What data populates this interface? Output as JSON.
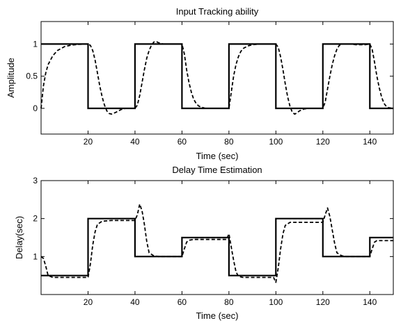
{
  "chart_data": [
    {
      "type": "line",
      "title": "Input Tracking ability",
      "xlabel": "Time (sec)",
      "ylabel": "Amplitude",
      "xlim": [
        0,
        150
      ],
      "ylim": [
        -0.4,
        1.35
      ],
      "xticks": [
        20,
        40,
        60,
        80,
        100,
        120,
        140
      ],
      "yticks": [
        0,
        0.5,
        1
      ],
      "ytick_labels": [
        "0",
        "0.5",
        "1"
      ],
      "grid": false,
      "series": [
        {
          "style": "solid",
          "x": [
            0,
            20,
            20,
            40,
            40,
            60,
            60,
            80,
            80,
            100,
            100,
            120,
            120,
            140,
            140,
            150
          ],
          "y": [
            1,
            1,
            0,
            0,
            1,
            1,
            0,
            0,
            1,
            1,
            0,
            0,
            1,
            1,
            0,
            0
          ]
        },
        {
          "style": "dashed",
          "x": [
            0,
            1,
            2,
            3,
            5,
            7,
            10,
            13,
            16,
            20,
            21,
            22,
            23,
            24,
            25,
            26,
            27,
            28,
            29,
            30,
            32,
            34,
            36,
            38,
            40,
            41,
            42,
            43,
            44,
            45,
            46,
            47,
            48,
            49,
            50,
            52,
            54,
            56,
            58,
            60,
            61,
            62,
            63,
            64,
            65,
            66,
            67,
            68,
            70,
            73,
            76,
            80,
            81,
            82,
            83,
            84,
            85,
            86,
            88,
            90,
            93,
            96,
            100,
            101,
            102,
            103,
            104,
            105,
            106,
            107,
            108,
            109,
            110,
            112,
            114,
            116,
            118,
            120,
            121,
            122,
            123,
            124,
            125,
            126,
            127,
            128,
            129,
            130,
            132,
            134,
            136,
            138,
            140,
            141,
            142,
            143,
            144,
            145,
            146,
            147,
            148,
            150
          ],
          "y": [
            0,
            0.35,
            0.55,
            0.68,
            0.82,
            0.9,
            0.96,
            0.985,
            0.995,
            1.0,
            0.98,
            0.9,
            0.75,
            0.55,
            0.35,
            0.18,
            0.05,
            -0.04,
            -0.08,
            -0.09,
            -0.06,
            -0.02,
            0.0,
            0.0,
            0.0,
            0.05,
            0.2,
            0.4,
            0.6,
            0.78,
            0.9,
            0.98,
            1.03,
            1.04,
            1.02,
            1.0,
            1.0,
            1.0,
            1.0,
            1.0,
            0.85,
            0.6,
            0.4,
            0.25,
            0.14,
            0.08,
            0.04,
            0.02,
            0.0,
            0.0,
            0.0,
            0.0,
            0.25,
            0.5,
            0.68,
            0.8,
            0.88,
            0.93,
            0.97,
            0.99,
            1.0,
            1.0,
            1.0,
            0.95,
            0.8,
            0.6,
            0.38,
            0.18,
            0.03,
            -0.06,
            -0.09,
            -0.07,
            -0.04,
            -0.01,
            0.0,
            0.0,
            0.0,
            0.0,
            0.1,
            0.3,
            0.5,
            0.68,
            0.82,
            0.92,
            0.98,
            1.0,
            1.0,
            1.0,
            1.0,
            0.99,
            0.99,
            0.99,
            1.0,
            0.92,
            0.72,
            0.5,
            0.32,
            0.18,
            0.08,
            0.03,
            0.01,
            0.0
          ]
        }
      ]
    },
    {
      "type": "line",
      "title": "Delay Time Estimation",
      "xlabel": "Time (sec)",
      "ylabel": "Delay(sec)",
      "xlim": [
        0,
        150
      ],
      "ylim": [
        0,
        3
      ],
      "xticks": [
        20,
        40,
        60,
        80,
        100,
        120,
        140
      ],
      "yticks": [
        1,
        2,
        3
      ],
      "ytick_labels": [
        "1",
        "2",
        "3"
      ],
      "grid": false,
      "series": [
        {
          "style": "solid",
          "x": [
            0,
            20,
            20,
            40,
            40,
            60,
            60,
            80,
            80,
            100,
            100,
            120,
            120,
            140,
            140,
            150
          ],
          "y": [
            0.5,
            0.5,
            2,
            2,
            1,
            1,
            1.5,
            1.5,
            0.5,
            0.5,
            2,
            2,
            1,
            1,
            1.5,
            1.5
          ]
        },
        {
          "style": "dashed",
          "x": [
            0,
            1,
            2,
            3,
            5,
            10,
            15,
            20,
            21,
            22,
            23,
            24,
            26,
            30,
            35,
            40,
            41,
            42,
            43,
            44,
            45,
            46,
            48,
            50,
            55,
            60,
            61,
            62,
            63,
            65,
            70,
            75,
            79,
            80,
            81,
            82,
            83,
            84,
            86,
            90,
            95,
            99,
            100,
            101,
            102,
            103,
            104,
            106,
            110,
            115,
            120,
            121,
            122,
            123,
            124,
            125,
            126,
            128,
            130,
            135,
            140,
            141,
            142,
            143,
            145,
            150
          ],
          "y": [
            1.0,
            0.95,
            0.75,
            0.5,
            0.45,
            0.45,
            0.45,
            0.45,
            0.8,
            1.3,
            1.65,
            1.85,
            1.93,
            1.95,
            1.95,
            1.95,
            2.1,
            2.38,
            2.2,
            1.85,
            1.4,
            1.1,
            1.02,
            1.0,
            1.0,
            1.0,
            1.2,
            1.38,
            1.43,
            1.45,
            1.45,
            1.45,
            1.45,
            1.6,
            1.25,
            0.9,
            0.6,
            0.48,
            0.45,
            0.45,
            0.45,
            0.45,
            0.32,
            0.7,
            1.2,
            1.6,
            1.82,
            1.9,
            1.9,
            1.9,
            1.9,
            2.1,
            2.28,
            2.05,
            1.7,
            1.35,
            1.1,
            1.02,
            1.0,
            1.0,
            1.0,
            1.2,
            1.38,
            1.42,
            1.42,
            1.42
          ]
        }
      ]
    }
  ]
}
